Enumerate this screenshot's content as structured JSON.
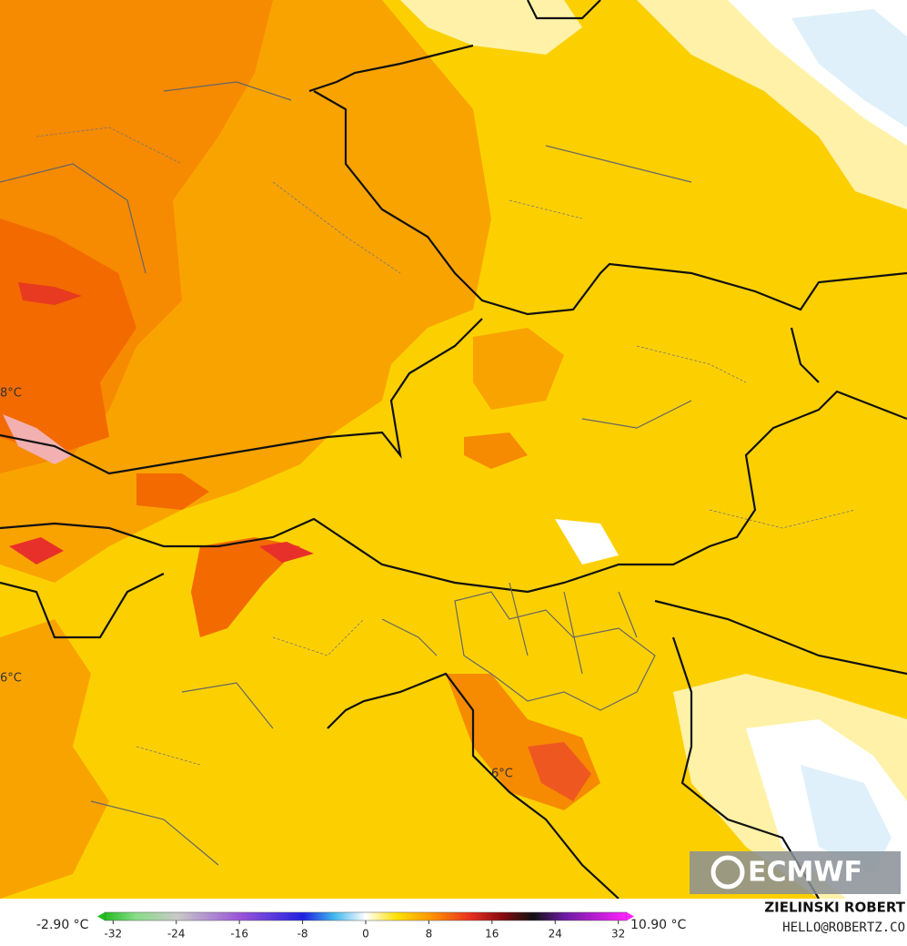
{
  "map": {
    "labels": [
      "8°C",
      "6°C",
      "6°C"
    ],
    "logo": "ECMWF"
  },
  "legend": {
    "min_label": "-2.90 °C",
    "max_label": "10.90 °C",
    "ticks": [
      -32,
      -24,
      -16,
      -8,
      0,
      8,
      16,
      24,
      32
    ],
    "lim": [
      -34,
      34
    ]
  },
  "credit": {
    "name": "ZIELINSKI ROBERT",
    "email": "HELLO@ROBERTZ.CO"
  }
}
